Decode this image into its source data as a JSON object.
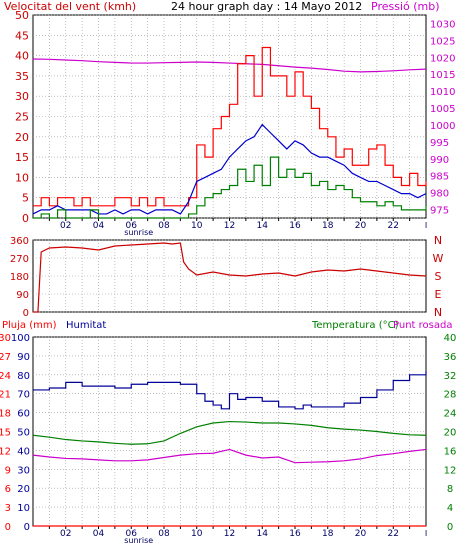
{
  "colors": {
    "wind": "#ff0000",
    "wind_avg": "#0000cc",
    "wind_min": "#008000",
    "pressure": "#cc00cc",
    "direction": "#cc0000",
    "rain_label": "#ff0000",
    "humidity": "#000099",
    "temperature": "#008000",
    "dewpoint": "#cc00cc",
    "axis_left": "#cc0000",
    "axis_right": "#cc00cc",
    "grid": "#999999",
    "frame": "#000000"
  },
  "chart_data": [
    {
      "type": "line",
      "title": "24 hour graph day : 14 Mayo 2012",
      "ylabel": "Velocitat del vent (kmh)",
      "y2label": "Pressió (mb)",
      "ylim": [
        0,
        50
      ],
      "y2lim": [
        972.5,
        1032.5
      ],
      "yticks": [
        0,
        5,
        10,
        15,
        20,
        25,
        30,
        35,
        40,
        45,
        50
      ],
      "y2ticks": [
        975,
        980,
        985,
        990,
        995,
        1000,
        1005,
        1010,
        1015,
        1020,
        1025,
        1030
      ],
      "xticks": [
        "02",
        "04",
        "06",
        "08",
        "10",
        "12",
        "14",
        "16",
        "18",
        "20",
        "22"
      ],
      "xlim": [
        0,
        24
      ],
      "x_marker": "sunrise",
      "sunrise_hour": 6.7,
      "grid": true,
      "series": [
        {
          "name": "wind_max",
          "x": [
            0,
            0.5,
            1,
            1.5,
            2,
            2.5,
            3,
            3.5,
            4,
            4.5,
            5,
            5.5,
            6,
            6.5,
            7,
            7.5,
            8,
            8.5,
            9,
            9.5,
            10,
            10.5,
            11,
            11.5,
            12,
            12.5,
            13,
            13.5,
            14,
            14.5,
            15,
            15.5,
            16,
            16.5,
            17,
            17.5,
            18,
            18.5,
            19,
            19.5,
            20,
            20.5,
            21,
            21.5,
            22,
            22.5,
            23,
            23.5,
            24
          ],
          "y": [
            3,
            5,
            3,
            5,
            5,
            3,
            5,
            3,
            3,
            3,
            5,
            5,
            3,
            5,
            3,
            5,
            3,
            3,
            3,
            5,
            18,
            15,
            22,
            25,
            28,
            38,
            40,
            30,
            42,
            35,
            35,
            30,
            36,
            30,
            27,
            22,
            20,
            15,
            17,
            13,
            13,
            17,
            18,
            13,
            10,
            8,
            11,
            8,
            9
          ]
        },
        {
          "name": "wind_avg",
          "x": [
            0,
            0.5,
            1,
            1.5,
            2,
            2.5,
            3,
            3.5,
            4,
            4.5,
            5,
            5.5,
            6,
            6.5,
            7,
            7.5,
            8,
            8.5,
            9,
            9.5,
            10,
            10.5,
            11,
            11.5,
            12,
            12.5,
            13,
            13.5,
            14,
            14.5,
            15,
            15.5,
            16,
            16.5,
            17,
            17.5,
            18,
            18.5,
            19,
            19.5,
            20,
            20.5,
            21,
            21.5,
            22,
            22.5,
            23,
            23.5,
            24
          ],
          "y": [
            1,
            2,
            2,
            3,
            2,
            2,
            2,
            2,
            1,
            1,
            2,
            1,
            2,
            2,
            1,
            2,
            2,
            2,
            1,
            4,
            9,
            10,
            11,
            12,
            15,
            17,
            19,
            20,
            23,
            21,
            19,
            17,
            19,
            18,
            16,
            15,
            15,
            14,
            13,
            11,
            10,
            9,
            9,
            8,
            7,
            6,
            6,
            5,
            6
          ]
        },
        {
          "name": "wind_min",
          "x": [
            0,
            0.5,
            1,
            1.5,
            2,
            2.5,
            3,
            3.5,
            4,
            4.5,
            5,
            5.5,
            6,
            6.5,
            7,
            7.5,
            8,
            8.5,
            9,
            9.5,
            10,
            10.5,
            11,
            11.5,
            12,
            12.5,
            13,
            13.5,
            14,
            14.5,
            15,
            15.5,
            16,
            16.5,
            17,
            17.5,
            18,
            18.5,
            19,
            19.5,
            20,
            20.5,
            21,
            21.5,
            22,
            22.5,
            23,
            23.5,
            24
          ],
          "y": [
            0,
            1,
            0,
            2,
            0,
            0,
            0,
            2,
            0,
            0,
            0,
            0,
            0,
            0,
            0,
            0,
            0,
            0,
            0,
            1,
            3,
            5,
            6,
            7,
            8,
            12,
            9,
            13,
            8,
            15,
            10,
            12,
            10,
            11,
            8,
            9,
            7,
            8,
            7,
            5,
            4,
            4,
            3,
            4,
            3,
            2,
            2,
            2,
            3
          ]
        },
        {
          "name": "pressure",
          "axis": "right",
          "x": [
            0,
            1,
            2,
            3,
            4,
            5,
            6,
            7,
            8,
            9,
            10,
            11,
            12,
            13,
            14,
            15,
            16,
            17,
            18,
            19,
            20,
            21,
            22,
            23,
            24
          ],
          "y": [
            1019.5,
            1019.4,
            1019.2,
            1019.0,
            1018.7,
            1018.5,
            1018.3,
            1018.3,
            1018.4,
            1018.5,
            1018.6,
            1018.5,
            1018.3,
            1018.1,
            1017.9,
            1017.5,
            1017.1,
            1016.8,
            1016.4,
            1015.9,
            1015.7,
            1015.8,
            1016.0,
            1016.3,
            1016.5
          ]
        }
      ]
    },
    {
      "type": "line",
      "ylim": [
        0,
        360
      ],
      "yticks": [
        0,
        90,
        180,
        270,
        360
      ],
      "y2labels": [
        "N",
        "W",
        "S",
        "E",
        "N"
      ],
      "xlim": [
        0,
        24
      ],
      "grid": true,
      "series": [
        {
          "name": "wind_direction",
          "x": [
            0,
            0.3,
            0.5,
            1,
            2,
            3,
            4,
            5,
            6,
            7,
            8,
            8.5,
            9,
            9.2,
            9.5,
            10,
            11,
            12,
            13,
            14,
            15,
            16,
            17,
            18,
            19,
            20,
            21,
            22,
            23,
            24
          ],
          "y": [
            0,
            0,
            300,
            320,
            325,
            320,
            310,
            330,
            335,
            340,
            345,
            340,
            345,
            250,
            215,
            185,
            200,
            185,
            180,
            190,
            195,
            180,
            200,
            210,
            205,
            215,
            205,
            195,
            185,
            180
          ]
        }
      ]
    },
    {
      "type": "line",
      "y_left_label": "Pluja (mm)",
      "y_left2_label": "Humitat",
      "y_right_label": "Temperatura (°C)",
      "y_right2_label": "Punt rosada",
      "rain_ticks": [
        0,
        3,
        6,
        9,
        12,
        15,
        18,
        21,
        24,
        27,
        30
      ],
      "humidity_ticks": [
        0,
        10,
        20,
        30,
        40,
        50,
        60,
        70,
        80,
        90,
        100
      ],
      "temp_ticks": [
        0,
        4,
        8,
        12,
        16,
        20,
        24,
        28,
        32,
        36,
        40
      ],
      "xticks": [
        "02",
        "04",
        "06",
        "08",
        "10",
        "12",
        "14",
        "16",
        "18",
        "20",
        "22"
      ],
      "xlim": [
        0,
        24
      ],
      "x_marker": "sunrise",
      "grid": true,
      "series": [
        {
          "name": "humidity",
          "axis": "humidity",
          "x": [
            0,
            1,
            2,
            3,
            4,
            5,
            6,
            7,
            8,
            9,
            10,
            10.5,
            11,
            11.5,
            12,
            12.5,
            13,
            14,
            15,
            16,
            16.5,
            17,
            18,
            19,
            20,
            21,
            22,
            23,
            24
          ],
          "y": [
            72,
            73,
            76,
            74,
            74,
            73,
            75,
            76,
            76,
            75,
            70,
            66,
            64,
            62,
            70,
            67,
            68,
            66,
            63,
            62,
            64,
            63,
            63,
            65,
            68,
            72,
            77,
            80,
            82
          ]
        },
        {
          "name": "temperature",
          "axis": "temp",
          "x": [
            0,
            1,
            2,
            3,
            4,
            5,
            6,
            7,
            8,
            9,
            10,
            11,
            12,
            13,
            14,
            15,
            16,
            17,
            18,
            19,
            20,
            21,
            22,
            23,
            24
          ],
          "y": [
            19.2,
            18.8,
            18.3,
            18.0,
            17.8,
            17.5,
            17.3,
            17.4,
            18.0,
            19.6,
            21.0,
            21.8,
            22.1,
            22.0,
            21.8,
            21.8,
            21.6,
            21.3,
            20.8,
            20.5,
            20.3,
            20.0,
            19.6,
            19.3,
            19.2
          ]
        },
        {
          "name": "dew_point",
          "axis": "temp",
          "x": [
            0,
            1,
            2,
            3,
            4,
            5,
            6,
            7,
            8,
            9,
            10,
            11,
            12,
            13,
            14,
            15,
            16,
            17,
            18,
            19,
            20,
            21,
            22,
            23,
            24
          ],
          "y": [
            15.0,
            14.6,
            14.3,
            14.2,
            14.0,
            13.8,
            13.8,
            14.0,
            14.5,
            15.0,
            15.3,
            15.4,
            16.2,
            15.0,
            14.4,
            14.6,
            13.4,
            13.5,
            13.6,
            13.8,
            14.2,
            14.9,
            15.3,
            15.8,
            16.2
          ]
        },
        {
          "name": "rain",
          "axis": "rain",
          "x": [
            0,
            24
          ],
          "y": [
            0,
            0
          ]
        }
      ]
    }
  ]
}
